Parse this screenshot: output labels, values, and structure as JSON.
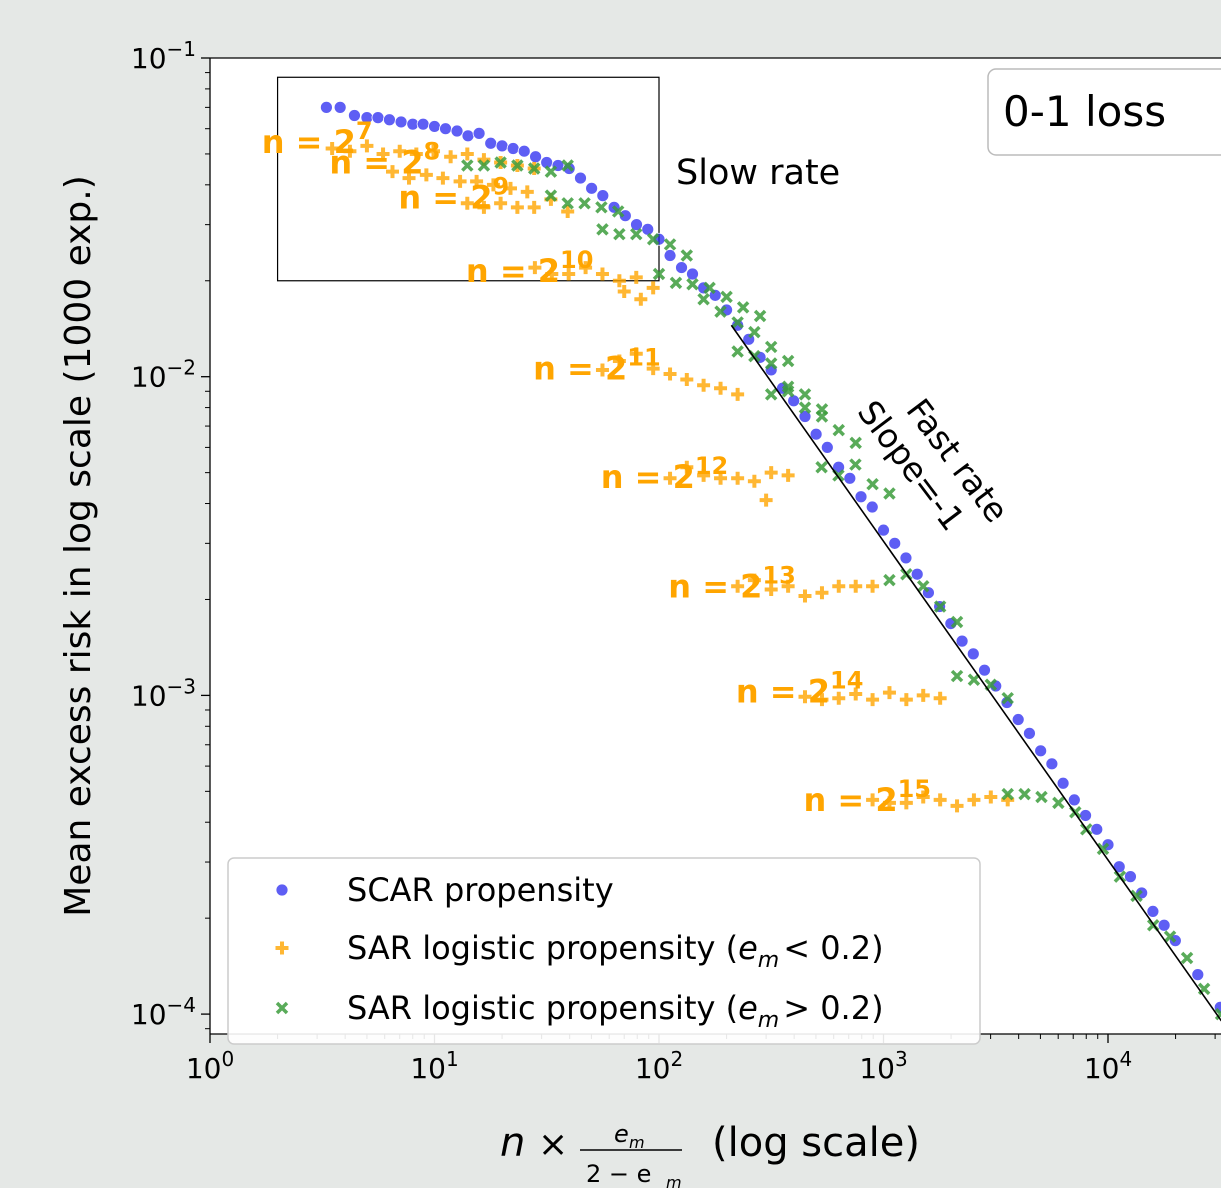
{
  "chart_data": {
    "type": "scatter",
    "xscale": "log",
    "yscale": "log",
    "xlim": [
      1,
      35000
    ],
    "ylim": [
      8.5e-05,
      0.1
    ],
    "xlabel": {
      "main": "n",
      "times": "×",
      "frac_num": "e",
      "frac_num_sub": "m",
      "frac_den": "2 − e",
      "frac_den_sub": "m",
      "suffix": "(log scale)"
    },
    "ylabel": "Mean excess risk in log scale (1000 exp.)",
    "x_ticks": [
      {
        "value": 1,
        "base": "10",
        "exp": "0"
      },
      {
        "value": 10,
        "base": "10",
        "exp": "1"
      },
      {
        "value": 100,
        "base": "10",
        "exp": "2"
      },
      {
        "value": 1000,
        "base": "10",
        "exp": "3"
      },
      {
        "value": 10000,
        "base": "10",
        "exp": "4"
      }
    ],
    "y_ticks": [
      {
        "value": 0.1,
        "base": "10",
        "exp": "−1"
      },
      {
        "value": 0.01,
        "base": "10",
        "exp": "−2"
      },
      {
        "value": 0.001,
        "base": "10",
        "exp": "−3"
      },
      {
        "value": 0.0001,
        "base": "10",
        "exp": "−4"
      }
    ],
    "grid": false,
    "legend_position": "lower-left",
    "panel_label": "0-1 loss",
    "annotations": {
      "slow_rate_label": "Slow rate",
      "slow_rate_box": {
        "x": [
          2,
          100
        ],
        "y": [
          0.02,
          0.087
        ]
      },
      "fast_rate_label_1": "Fast rate",
      "fast_rate_label_2": "Slope=-1",
      "fast_rate_line": {
        "x": [
          210,
          32000
        ],
        "y": [
          0.0145,
          9.52e-05
        ]
      },
      "n_labels": [
        {
          "text": "n = 2",
          "exp": "7",
          "x": 1.7,
          "y": 0.0545
        },
        {
          "text": "n = 2",
          "exp": "8",
          "x": 3.4,
          "y": 0.047
        },
        {
          "text": "n = 2",
          "exp": "9",
          "x": 6.9,
          "y": 0.0365
        },
        {
          "text": "n = 2",
          "exp": "10",
          "x": 13.8,
          "y": 0.0215
        },
        {
          "text": "n = 2",
          "exp": "11",
          "x": 27.5,
          "y": 0.0106
        },
        {
          "text": "n = 2",
          "exp": "12",
          "x": 55,
          "y": 0.00485
        },
        {
          "text": "n = 2",
          "exp": "13",
          "x": 110,
          "y": 0.0022
        },
        {
          "text": "n = 2",
          "exp": "14",
          "x": 220,
          "y": 0.00103
        },
        {
          "text": "n = 2",
          "exp": "15",
          "x": 440,
          "y": 0.00047
        }
      ]
    },
    "series": [
      {
        "name": "SCAR propensity",
        "marker": "circle",
        "color": "#2828f0",
        "points": [
          [
            3.3,
            0.07
          ],
          [
            3.8,
            0.07
          ],
          [
            4.4,
            0.066
          ],
          [
            5.0,
            0.065
          ],
          [
            5.6,
            0.065
          ],
          [
            6.3,
            0.064
          ],
          [
            7.1,
            0.063
          ],
          [
            8.0,
            0.062
          ],
          [
            8.9,
            0.062
          ],
          [
            10.0,
            0.061
          ],
          [
            11.2,
            0.06
          ],
          [
            12.6,
            0.059
          ],
          [
            14.1,
            0.057
          ],
          [
            15.8,
            0.058
          ],
          [
            17.8,
            0.054
          ],
          [
            20.0,
            0.053
          ],
          [
            22.4,
            0.052
          ],
          [
            25.1,
            0.051
          ],
          [
            28.2,
            0.049
          ],
          [
            31.6,
            0.047
          ],
          [
            35.5,
            0.046
          ],
          [
            39.8,
            0.045
          ],
          [
            44.7,
            0.042
          ],
          [
            50.1,
            0.039
          ],
          [
            56.2,
            0.037
          ],
          [
            63.1,
            0.034
          ],
          [
            70.8,
            0.032
          ],
          [
            79.4,
            0.03
          ],
          [
            89.1,
            0.029
          ],
          [
            100,
            0.027
          ],
          [
            112,
            0.024
          ],
          [
            126,
            0.022
          ],
          [
            141,
            0.021
          ],
          [
            158,
            0.019
          ],
          [
            178,
            0.018
          ],
          [
            200,
            0.0162
          ],
          [
            224,
            0.0145
          ],
          [
            251,
            0.0131
          ],
          [
            282,
            0.0115
          ],
          [
            316,
            0.0105
          ],
          [
            355,
            0.0092
          ],
          [
            398,
            0.0084
          ],
          [
            447,
            0.0075
          ],
          [
            501,
            0.0066
          ],
          [
            562,
            0.006
          ],
          [
            631,
            0.0052
          ],
          [
            708,
            0.0048
          ],
          [
            794,
            0.0042
          ],
          [
            891,
            0.0039
          ],
          [
            1000,
            0.0033
          ],
          [
            1122,
            0.003
          ],
          [
            1259,
            0.0027
          ],
          [
            1413,
            0.0024
          ],
          [
            1585,
            0.0021
          ],
          [
            1778,
            0.0019
          ],
          [
            1995,
            0.00168
          ],
          [
            2239,
            0.00148
          ],
          [
            2512,
            0.00135
          ],
          [
            2818,
            0.0012
          ],
          [
            3162,
            0.00107
          ],
          [
            3548,
            0.00095
          ],
          [
            3981,
            0.00084
          ],
          [
            4467,
            0.00076
          ],
          [
            5012,
            0.00067
          ],
          [
            5623,
            0.00061
          ],
          [
            6310,
            0.00053
          ],
          [
            7079,
            0.00047
          ],
          [
            7943,
            0.00042
          ],
          [
            8913,
            0.00038
          ],
          [
            10000,
            0.00034
          ],
          [
            11220,
            0.00029
          ],
          [
            12589,
            0.00027
          ],
          [
            14125,
            0.00024
          ],
          [
            15849,
            0.00021
          ],
          [
            17783,
            0.00019
          ],
          [
            19953,
            0.00017
          ],
          [
            25119,
            0.000133
          ],
          [
            31623,
            0.000105
          ]
        ]
      },
      {
        "name": "SAR logistic propensity (e_m < 0.2)",
        "marker": "plus",
        "color": "#ffa500",
        "points": [
          [
            3.5,
            0.052
          ],
          [
            4.2,
            0.051
          ],
          [
            5.0,
            0.053
          ],
          [
            5.9,
            0.05
          ],
          [
            7.0,
            0.051
          ],
          [
            8.3,
            0.05
          ],
          [
            9.9,
            0.051
          ],
          [
            11.8,
            0.049
          ],
          [
            14.0,
            0.05
          ],
          [
            16.6,
            0.048
          ],
          [
            19.7,
            0.047
          ],
          [
            23.4,
            0.046
          ],
          [
            27.8,
            0.045
          ],
          [
            6.5,
            0.044
          ],
          [
            7.7,
            0.042
          ],
          [
            9.2,
            0.043
          ],
          [
            10.9,
            0.042
          ],
          [
            13.0,
            0.041
          ],
          [
            15.4,
            0.041
          ],
          [
            18.3,
            0.04
          ],
          [
            21.8,
            0.039
          ],
          [
            25.9,
            0.038
          ],
          [
            14.0,
            0.035
          ],
          [
            16.6,
            0.034
          ],
          [
            19.7,
            0.035
          ],
          [
            23.4,
            0.034
          ],
          [
            27.8,
            0.034
          ],
          [
            33.0,
            0.036
          ],
          [
            39.2,
            0.033
          ],
          [
            28.0,
            0.022
          ],
          [
            33.3,
            0.021
          ],
          [
            39.6,
            0.021
          ],
          [
            47.1,
            0.022
          ],
          [
            56.0,
            0.021
          ],
          [
            66.6,
            0.02
          ],
          [
            79.2,
            0.0205
          ],
          [
            94.2,
            0.019
          ],
          [
            70.0,
            0.0185
          ],
          [
            83.0,
            0.0175
          ],
          [
            56.0,
            0.0105
          ],
          [
            66.6,
            0.0112
          ],
          [
            79.2,
            0.0118
          ],
          [
            94.2,
            0.0106
          ],
          [
            112,
            0.0102
          ],
          [
            133,
            0.0098
          ],
          [
            158,
            0.0094
          ],
          [
            188,
            0.0092
          ],
          [
            224,
            0.0088
          ],
          [
            112,
            0.0048
          ],
          [
            133,
            0.0052
          ],
          [
            158,
            0.0049
          ],
          [
            188,
            0.0048
          ],
          [
            224,
            0.0048
          ],
          [
            266,
            0.0047
          ],
          [
            316,
            0.005
          ],
          [
            376,
            0.0049
          ],
          [
            300,
            0.0041
          ],
          [
            224,
            0.0022
          ],
          [
            266,
            0.0023
          ],
          [
            316,
            0.00215
          ],
          [
            376,
            0.0022
          ],
          [
            447,
            0.00205
          ],
          [
            532,
            0.0021
          ],
          [
            632,
            0.0022
          ],
          [
            752,
            0.0022
          ],
          [
            894,
            0.0022
          ],
          [
            447,
            0.00099
          ],
          [
            532,
            0.00097
          ],
          [
            632,
            0.00098
          ],
          [
            752,
            0.00101
          ],
          [
            894,
            0.00097
          ],
          [
            1063,
            0.00102
          ],
          [
            1264,
            0.00097
          ],
          [
            1503,
            0.001
          ],
          [
            1788,
            0.00098
          ],
          [
            894,
            0.00047
          ],
          [
            1063,
            0.00046
          ],
          [
            1264,
            0.00046
          ],
          [
            1503,
            0.00048
          ],
          [
            1788,
            0.00047
          ],
          [
            2126,
            0.00045
          ],
          [
            2528,
            0.00047
          ],
          [
            3006,
            0.00048
          ],
          [
            3575,
            0.00047
          ]
        ]
      },
      {
        "name": "SAR logistic propensity (e_m > 0.2)",
        "marker": "x",
        "color": "#3c9c3c",
        "points": [
          [
            14,
            0.046
          ],
          [
            16.6,
            0.046
          ],
          [
            19.7,
            0.047
          ],
          [
            23.4,
            0.046
          ],
          [
            27.8,
            0.045
          ],
          [
            33,
            0.044
          ],
          [
            39.2,
            0.046
          ],
          [
            33,
            0.037
          ],
          [
            39.2,
            0.035
          ],
          [
            46.6,
            0.035
          ],
          [
            55.4,
            0.034
          ],
          [
            65.8,
            0.033
          ],
          [
            56,
            0.029
          ],
          [
            66.6,
            0.028
          ],
          [
            79.2,
            0.028
          ],
          [
            94.2,
            0.027
          ],
          [
            112,
            0.026
          ],
          [
            133,
            0.024
          ],
          [
            100,
            0.021
          ],
          [
            119,
            0.0197
          ],
          [
            141,
            0.0195
          ],
          [
            168,
            0.019
          ],
          [
            200,
            0.0178
          ],
          [
            237,
            0.0165
          ],
          [
            282,
            0.0155
          ],
          [
            158,
            0.0175
          ],
          [
            188,
            0.016
          ],
          [
            224,
            0.0148
          ],
          [
            266,
            0.0138
          ],
          [
            316,
            0.0124
          ],
          [
            376,
            0.0112
          ],
          [
            224,
            0.012
          ],
          [
            266,
            0.0116
          ],
          [
            316,
            0.011
          ],
          [
            376,
            0.0093
          ],
          [
            447,
            0.0088
          ],
          [
            532,
            0.0079
          ],
          [
            316,
            0.0088
          ],
          [
            376,
            0.009
          ],
          [
            447,
            0.008
          ],
          [
            532,
            0.0075
          ],
          [
            632,
            0.0068
          ],
          [
            752,
            0.0062
          ],
          [
            530,
            0.0052
          ],
          [
            630,
            0.0049
          ],
          [
            750,
            0.0053
          ],
          [
            894,
            0.0046
          ],
          [
            1063,
            0.0043
          ],
          [
            1063,
            0.0023
          ],
          [
            1264,
            0.0024
          ],
          [
            1503,
            0.0022
          ],
          [
            1788,
            0.0019
          ],
          [
            2126,
            0.0017
          ],
          [
            2126,
            0.00115
          ],
          [
            2528,
            0.00112
          ],
          [
            3006,
            0.00108
          ],
          [
            3575,
            0.00098
          ],
          [
            3575,
            0.00049
          ],
          [
            4251,
            0.00049
          ],
          [
            5055,
            0.00048
          ],
          [
            6011,
            0.00046
          ],
          [
            7150,
            0.00043
          ],
          [
            8000,
            0.00038
          ],
          [
            9500,
            0.00033
          ],
          [
            11300,
            0.00027
          ],
          [
            13400,
            0.000235
          ],
          [
            15900,
            0.00019
          ],
          [
            18900,
            0.000175
          ],
          [
            22500,
            0.00015
          ],
          [
            26800,
            0.00012
          ],
          [
            31900,
            0.0001
          ]
        ]
      }
    ],
    "legend": [
      {
        "label": "SCAR propensity",
        "marker": "circle",
        "color": "#2828f0",
        "has_math": false
      },
      {
        "label": "SAR logistic propensity (",
        "marker": "plus",
        "color": "#ffa500",
        "has_math": true,
        "math_var": "e",
        "math_sub": "m",
        "math_op": "< 0.2",
        "suffix": ")"
      },
      {
        "label": "SAR logistic propensity (",
        "marker": "x",
        "color": "#3c9c3c",
        "has_math": true,
        "math_var": "e",
        "math_sub": "m",
        "math_op": "> 0.2",
        "suffix": ")"
      }
    ]
  }
}
